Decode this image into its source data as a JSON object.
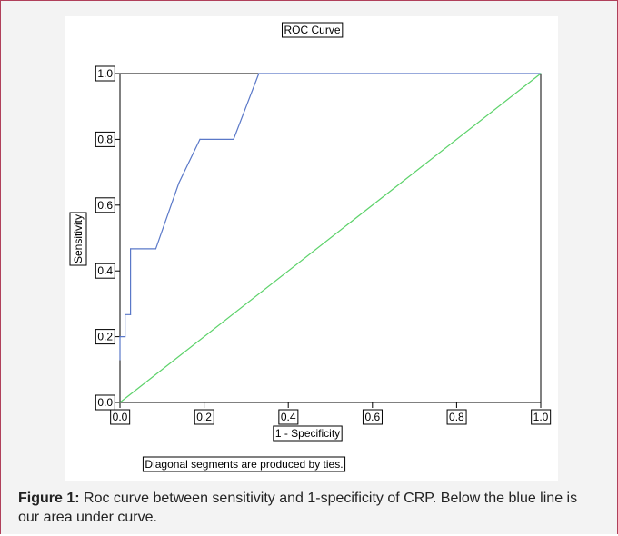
{
  "chart_data": {
    "type": "line",
    "title": "ROC Curve",
    "xlabel": "1 - Specificity",
    "ylabel": "Sensitivity",
    "xlim": [
      0.0,
      1.0
    ],
    "ylim": [
      0.0,
      1.0
    ],
    "x_ticks": [
      "0.0",
      "0.2",
      "0.4",
      "0.6",
      "0.8",
      "1.0"
    ],
    "y_ticks": [
      "0.0",
      "0.2",
      "0.4",
      "0.6",
      "0.8",
      "1.0"
    ],
    "footnote": "Diagonal segments are produced by ties.",
    "grid": false,
    "series": [
      {
        "color": "#5a78c8",
        "x": [
          0.0,
          0.0,
          0.012,
          0.012,
          0.025,
          0.025,
          0.085,
          0.14,
          0.19,
          0.27,
          0.33,
          1.0
        ],
        "y": [
          0.13,
          0.2,
          0.2,
          0.267,
          0.267,
          0.467,
          0.467,
          0.667,
          0.8,
          0.8,
          1.0,
          1.0
        ]
      },
      {
        "color": "#5cd26a",
        "x": [
          0.0,
          1.0
        ],
        "y": [
          0.0,
          1.0
        ]
      }
    ]
  },
  "caption": {
    "label": "Figure 1:",
    "text": " Roc curve between sensitivity and 1-specificity of CRP. Below the blue line is our area under curve."
  }
}
